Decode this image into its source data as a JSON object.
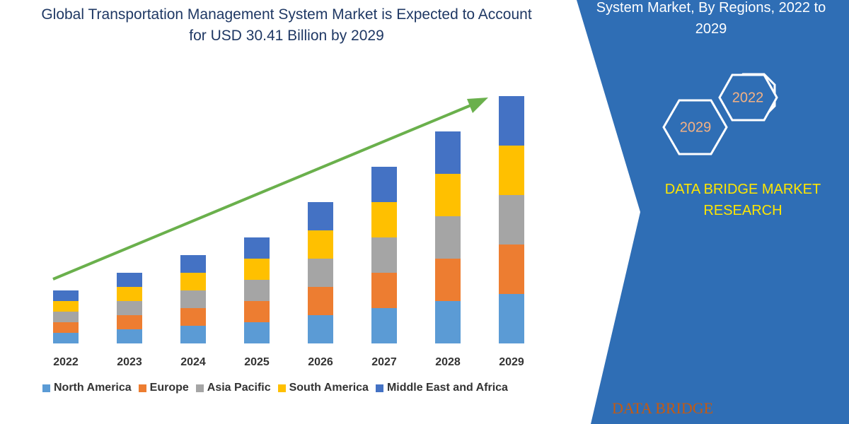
{
  "chart_data": {
    "type": "bar",
    "stacked": true,
    "title": "Global Transportation Management System Market is Expected to Account for USD 30.41 Billion by 2029",
    "categories": [
      "2022",
      "2023",
      "2024",
      "2025",
      "2026",
      "2027",
      "2028",
      "2029"
    ],
    "series": [
      {
        "name": "North America",
        "color": "#5b9bd5",
        "values": [
          15,
          20,
          25,
          30,
          40,
          50,
          60,
          70
        ]
      },
      {
        "name": "Europe",
        "color": "#ed7d31",
        "values": [
          15,
          20,
          25,
          30,
          40,
          50,
          60,
          70
        ]
      },
      {
        "name": "Asia Pacific",
        "color": "#a5a5a5",
        "values": [
          15,
          20,
          25,
          30,
          40,
          50,
          60,
          70
        ]
      },
      {
        "name": "South America",
        "color": "#ffc000",
        "values": [
          15,
          20,
          25,
          30,
          40,
          50,
          60,
          70
        ]
      },
      {
        "name": "Middle East and Africa",
        "color": "#4472c4",
        "values": [
          15,
          20,
          25,
          30,
          40,
          50,
          60,
          70
        ]
      }
    ]
  },
  "side_heading": "System Market, By Regions, 2022 to 2029",
  "hexagons": [
    "2022",
    "2029"
  ],
  "brand": "DATA BRIDGE MARKET RESEARCH",
  "logo": "DATA BRIDGE"
}
